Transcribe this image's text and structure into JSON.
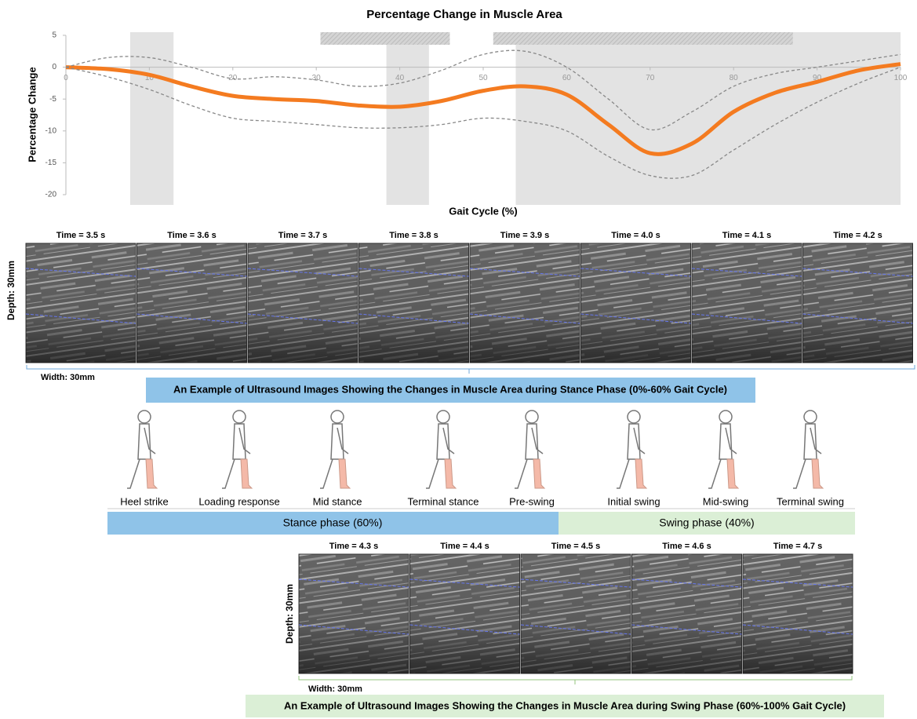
{
  "chart_data": {
    "type": "line",
    "title": "Percentage Change in Muscle Area",
    "x_label": "Gait Cycle (%)",
    "y_label": "Percentage Change",
    "x": [
      0,
      5,
      10,
      15,
      20,
      25,
      30,
      35,
      40,
      45,
      50,
      55,
      60,
      65,
      70,
      75,
      80,
      85,
      90,
      95,
      100
    ],
    "series": [
      {
        "color": "#f47b20",
        "style": "solid",
        "values": [
          0,
          -0.3,
          -1.2,
          -3,
          -4.5,
          -5,
          -5.3,
          -6,
          -6.2,
          -5.3,
          -3.7,
          -3,
          -4.3,
          -9,
          -13.5,
          -12,
          -7,
          -4,
          -2.3,
          -0.5,
          0.5
        ]
      },
      {
        "color": "#888888",
        "style": "dashed",
        "values": [
          0,
          1.5,
          1.5,
          0,
          -1.8,
          -1.5,
          -2,
          -3,
          -2.5,
          -0.5,
          2,
          2.5,
          0,
          -5,
          -9.8,
          -7,
          -3,
          -1,
          0,
          1,
          2
        ]
      },
      {
        "color": "#888888",
        "style": "dashed",
        "values": [
          0,
          -1.5,
          -3.5,
          -6,
          -8,
          -8.5,
          -9,
          -9.5,
          -9.5,
          -9,
          -8,
          -8.5,
          -10,
          -14,
          -17,
          -17,
          -13,
          -9,
          -5.5,
          -2.5,
          0
        ]
      }
    ],
    "xlim": [
      0,
      100
    ],
    "ylim": [
      -20,
      5
    ],
    "xticks": [
      0,
      10,
      20,
      30,
      40,
      50,
      60,
      70,
      80,
      90,
      100
    ],
    "yticks": [
      -20,
      -15,
      -10,
      -5,
      0,
      5
    ],
    "shaded_regions": [
      [
        7.7,
        12.9
      ],
      [
        38.4,
        43.5
      ],
      [
        53.9,
        100
      ]
    ],
    "hatched_regions": [
      [
        30.5,
        46
      ],
      [
        51.2,
        87.1
      ]
    ]
  },
  "stance_images": {
    "times": [
      "Time = 3.5 s",
      "Time = 3.6 s",
      "Time = 3.7 s",
      "Time = 3.8 s",
      "Time = 3.9 s",
      "Time = 4.0 s",
      "Time = 4.1 s",
      "Time = 4.2 s"
    ],
    "depth_label": "Depth: 30mm",
    "width_label": "Width: 30mm",
    "caption": "An Example of Ultrasound Images Showing the Changes in Muscle Area during Stance Phase (0%-60% Gait Cycle)"
  },
  "gait_phases": {
    "labels": [
      "Heel strike",
      "Loading response",
      "Mid stance",
      "Terminal stance",
      "Pre-swing",
      "Initial swing",
      "Mid-swing",
      "Terminal swing"
    ],
    "stance_label": "Stance phase (60%)",
    "swing_label": "Swing phase (40%)"
  },
  "swing_images": {
    "times": [
      "Time = 4.3 s",
      "Time = 4.4 s",
      "Time = 4.5 s",
      "Time = 4.6 s",
      "Time = 4.7 s"
    ],
    "depth_label": "Depth: 30mm",
    "width_label": "Width: 30mm",
    "caption": "An Example of Ultrasound Images Showing the Changes in Muscle Area during Swing Phase (60%-100% Gait Cycle)"
  }
}
